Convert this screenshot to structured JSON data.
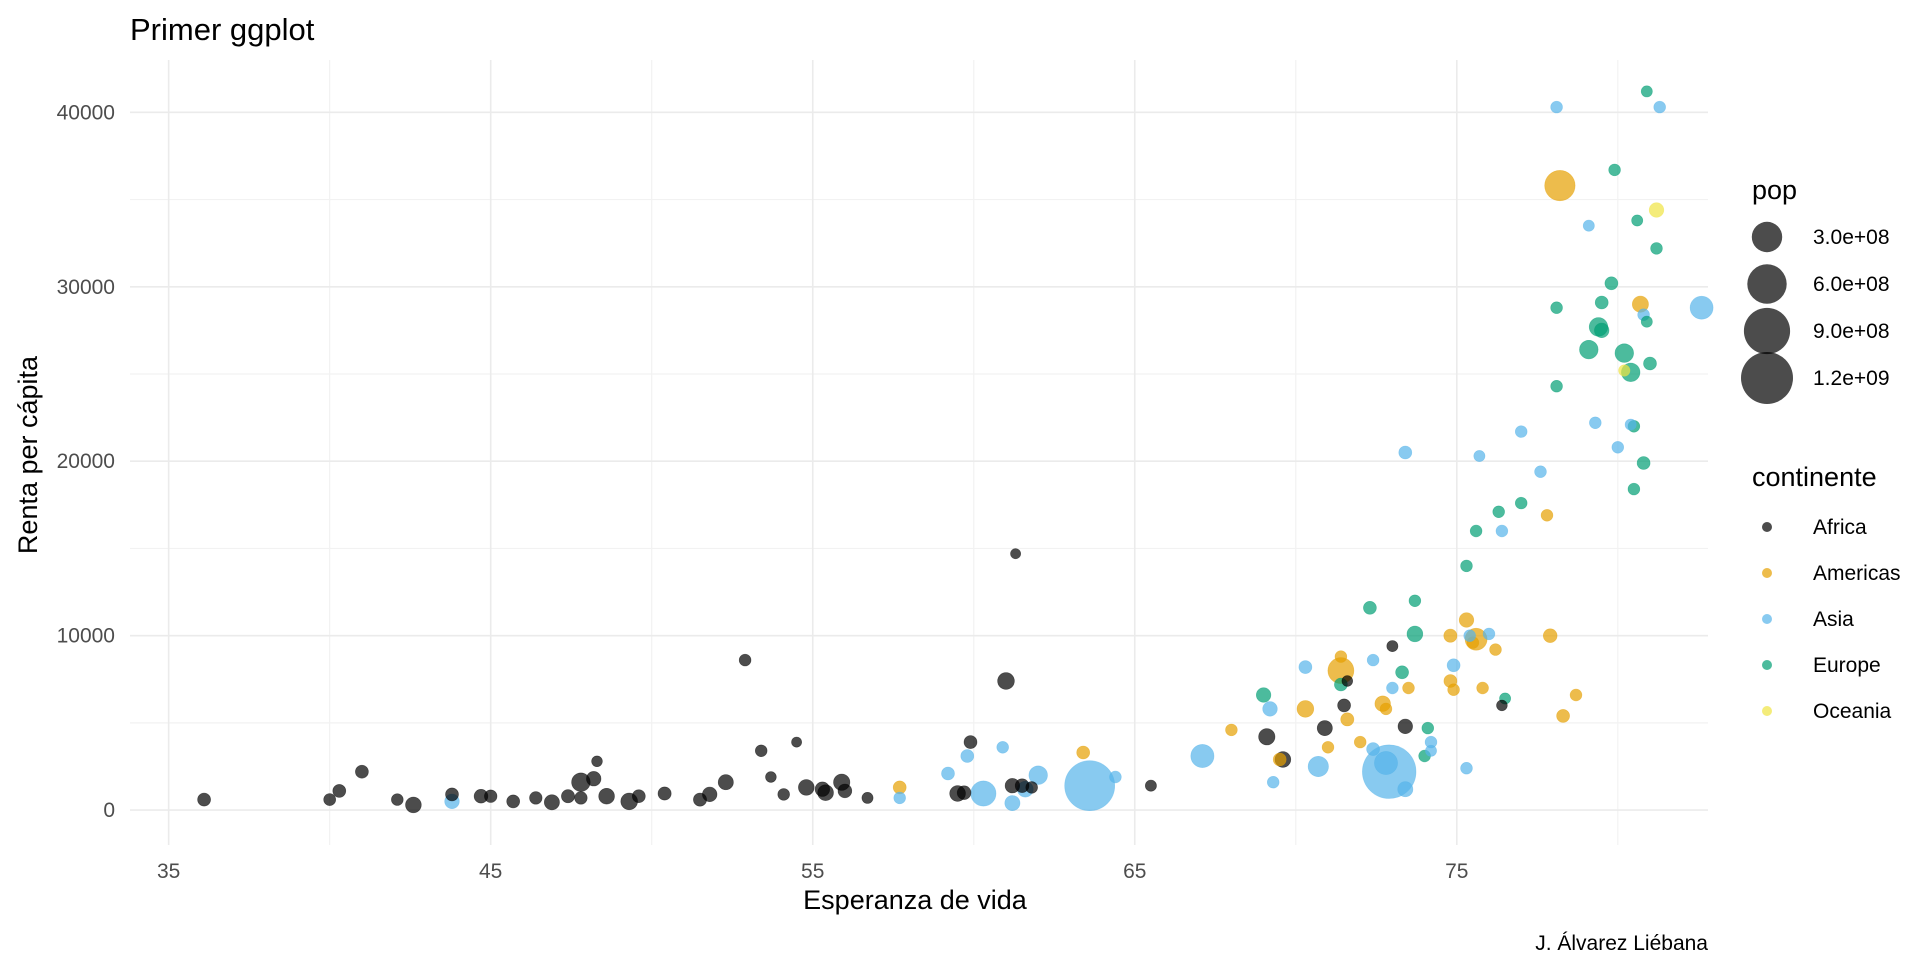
{
  "chart_data": {
    "type": "scatter",
    "title": "Primer ggplot",
    "xlabel": "Esperanza de vida",
    "ylabel": "Renta per cápita",
    "caption": "J. Álvarez Liébana",
    "xlim": [
      33.8,
      82.8
    ],
    "ylim": [
      -2000,
      43000
    ],
    "x_ticks": [
      35,
      45,
      55,
      65,
      75
    ],
    "y_ticks": [
      0,
      10000,
      20000,
      30000,
      40000
    ],
    "grid": true,
    "legend_placement": "right",
    "size_legend": {
      "title": "pop",
      "entries": [
        {
          "label": "3.0e+08",
          "value": 300000000
        },
        {
          "label": "6.0e+08",
          "value": 600000000
        },
        {
          "label": "9.0e+08",
          "value": 900000000
        },
        {
          "label": "1.2e+09",
          "value": 1200000000
        }
      ]
    },
    "color_legend": {
      "title": "continente",
      "entries": [
        {
          "label": "Africa",
          "color": "#000000"
        },
        {
          "label": "Americas",
          "color": "#E69F00"
        },
        {
          "label": "Asia",
          "color": "#56B4E9"
        },
        {
          "label": "Europe",
          "color": "#009E73"
        },
        {
          "label": "Oceania",
          "color": "#F0E442"
        }
      ]
    },
    "series": [
      {
        "name": "Africa",
        "color": "#000000",
        "points": [
          [
            36.1,
            600,
            10000000
          ],
          [
            40.0,
            600,
            6000000
          ],
          [
            40.3,
            1100,
            10000000
          ],
          [
            41.0,
            2200,
            10000000
          ],
          [
            42.1,
            600,
            5000000
          ],
          [
            42.6,
            300,
            30000000
          ],
          [
            43.8,
            900,
            10000000
          ],
          [
            44.7,
            800,
            15000000
          ],
          [
            45.0,
            800,
            8000000
          ],
          [
            45.7,
            500,
            10000000
          ],
          [
            46.4,
            700,
            8000000
          ],
          [
            46.9,
            450,
            25000000
          ],
          [
            47.4,
            800,
            12000000
          ],
          [
            47.8,
            700,
            8000000
          ],
          [
            47.8,
            1600,
            60000000
          ],
          [
            48.2,
            1800,
            20000000
          ],
          [
            48.3,
            2800,
            2000000
          ],
          [
            48.6,
            800,
            30000000
          ],
          [
            49.3,
            500,
            40000000
          ],
          [
            49.6,
            800,
            10000000
          ],
          [
            50.4,
            950,
            12000000
          ],
          [
            51.5,
            600,
            12000000
          ],
          [
            51.8,
            900,
            20000000
          ],
          [
            52.3,
            1600,
            25000000
          ],
          [
            52.9,
            8600,
            5000000
          ],
          [
            53.4,
            3400,
            5000000
          ],
          [
            53.7,
            1900,
            2000000
          ],
          [
            54.1,
            900,
            5000000
          ],
          [
            54.5,
            3900,
            1000000
          ],
          [
            54.8,
            1300,
            30000000
          ],
          [
            55.3,
            1200,
            20000000
          ],
          [
            55.4,
            1000,
            30000000
          ],
          [
            55.9,
            1600,
            35000000
          ],
          [
            56.0,
            1100,
            15000000
          ],
          [
            56.7,
            700,
            3000000
          ],
          [
            59.5,
            950,
            30000000
          ],
          [
            59.7,
            1000,
            15000000
          ],
          [
            59.9,
            3900,
            10000000
          ],
          [
            61.0,
            7400,
            40000000
          ],
          [
            61.2,
            1400,
            20000000
          ],
          [
            61.5,
            1400,
            15000000
          ],
          [
            61.3,
            14700,
            1000000
          ],
          [
            61.8,
            1300,
            5000000
          ],
          [
            65.5,
            1400,
            3000000
          ],
          [
            69.1,
            4200,
            35000000
          ],
          [
            69.6,
            2900,
            30000000
          ],
          [
            70.9,
            4700,
            25000000
          ],
          [
            71.5,
            6000,
            10000000
          ],
          [
            71.6,
            7400,
            2000000
          ],
          [
            73.0,
            9400,
            3000000
          ],
          [
            73.4,
            4800,
            20000000
          ],
          [
            76.4,
            6000,
            2000000
          ]
        ]
      },
      {
        "name": "Americas",
        "color": "#E69F00",
        "points": [
          [
            57.7,
            1300,
            10000000
          ],
          [
            63.4,
            3300,
            10000000
          ],
          [
            68.0,
            4600,
            5000000
          ],
          [
            69.5,
            2900,
            10000000
          ],
          [
            70.3,
            5800,
            40000000
          ],
          [
            71.0,
            3600,
            5000000
          ],
          [
            71.4,
            8800,
            5000000
          ],
          [
            71.4,
            8000,
            190000000
          ],
          [
            71.6,
            5200,
            12000000
          ],
          [
            72.0,
            3900,
            5000000
          ],
          [
            72.7,
            6100,
            28000000
          ],
          [
            72.8,
            5800,
            5000000
          ],
          [
            73.5,
            7000,
            5000000
          ],
          [
            74.8,
            10000,
            12000000
          ],
          [
            74.9,
            6900,
            5000000
          ],
          [
            74.8,
            7400,
            10000000
          ],
          [
            75.3,
            10900,
            20000000
          ],
          [
            75.5,
            9600,
            5000000
          ],
          [
            75.6,
            9800,
            110000000
          ],
          [
            75.8,
            7000,
            5000000
          ],
          [
            76.2,
            9200,
            5000000
          ],
          [
            77.9,
            10000,
            15000000
          ],
          [
            77.8,
            16900,
            5000000
          ],
          [
            78.3,
            5400,
            10000000
          ],
          [
            78.7,
            6600,
            5000000
          ],
          [
            78.2,
            35800,
            300000000
          ],
          [
            80.7,
            29000,
            33000000
          ]
        ]
      },
      {
        "name": "Asia",
        "color": "#56B4E9",
        "points": [
          [
            43.8,
            500,
            20000000
          ],
          [
            57.7,
            700,
            5000000
          ],
          [
            59.2,
            2100,
            10000000
          ],
          [
            59.8,
            3100,
            10000000
          ],
          [
            60.3,
            950,
            170000000
          ],
          [
            60.9,
            3600,
            5000000
          ],
          [
            61.2,
            400,
            25000000
          ],
          [
            61.6,
            1200,
            30000000
          ],
          [
            62.0,
            2000,
            60000000
          ],
          [
            63.6,
            1400,
            1100000000
          ],
          [
            64.4,
            1900,
            5000000
          ],
          [
            67.1,
            3100,
            130000000
          ],
          [
            69.2,
            5800,
            20000000
          ],
          [
            69.3,
            1600,
            5000000
          ],
          [
            70.3,
            8200,
            10000000
          ],
          [
            70.7,
            2500,
            85000000
          ],
          [
            72.4,
            3500,
            10000000
          ],
          [
            72.4,
            8600,
            5000000
          ],
          [
            72.8,
            2700,
            130000000
          ],
          [
            72.9,
            2200,
            1300000000
          ],
          [
            73.0,
            7000,
            5000000
          ],
          [
            73.4,
            1200,
            25000000
          ],
          [
            73.4,
            20500,
            10000000
          ],
          [
            74.2,
            3400,
            3000000
          ],
          [
            74.2,
            3900,
            5000000
          ],
          [
            74.9,
            8300,
            10000000
          ],
          [
            75.4,
            10000,
            5000000
          ],
          [
            75.3,
            2400,
            5000000
          ],
          [
            75.7,
            20300,
            3000000
          ],
          [
            77.6,
            19400,
            5000000
          ],
          [
            76.0,
            10100,
            5000000
          ],
          [
            76.4,
            16000,
            5000000
          ],
          [
            77.0,
            21700,
            5000000
          ],
          [
            78.1,
            40300,
            5000000
          ],
          [
            79.1,
            33500,
            3000000
          ],
          [
            79.3,
            22200,
            5000000
          ],
          [
            80.0,
            20800,
            5000000
          ],
          [
            80.4,
            22100,
            3000000
          ],
          [
            80.8,
            28400,
            5000000
          ],
          [
            82.6,
            28800,
            127000000
          ],
          [
            81.3,
            40300,
            5000000
          ]
        ]
      },
      {
        "name": "Europe",
        "color": "#009E73",
        "points": [
          [
            69.0,
            6600,
            20000000
          ],
          [
            71.4,
            7200,
            10000000
          ],
          [
            72.3,
            11600,
            10000000
          ],
          [
            73.3,
            7900,
            10000000
          ],
          [
            73.7,
            10100,
            30000000
          ],
          [
            73.7,
            12000,
            5000000
          ],
          [
            74.0,
            3100,
            5000000
          ],
          [
            74.1,
            4700,
            5000000
          ],
          [
            75.3,
            14000,
            5000000
          ],
          [
            75.6,
            16000,
            5000000
          ],
          [
            76.3,
            17100,
            5000000
          ],
          [
            76.5,
            6400,
            3000000
          ],
          [
            77.0,
            17600,
            5000000
          ],
          [
            78.1,
            28800,
            5000000
          ],
          [
            78.1,
            24300,
            5000000
          ],
          [
            79.1,
            26400,
            60000000
          ],
          [
            79.4,
            27700,
            60000000
          ],
          [
            79.5,
            29100,
            10000000
          ],
          [
            79.5,
            27500,
            20000000
          ],
          [
            79.8,
            30200,
            10000000
          ],
          [
            79.9,
            36700,
            5000000
          ],
          [
            80.2,
            26200,
            60000000
          ],
          [
            80.4,
            25100,
            60000000
          ],
          [
            80.5,
            22000,
            5000000
          ],
          [
            80.5,
            18400,
            5000000
          ],
          [
            80.8,
            19900,
            10000000
          ],
          [
            80.9,
            28000,
            3000000
          ],
          [
            81.0,
            25600,
            10000000
          ],
          [
            81.2,
            32200,
            5000000
          ],
          [
            80.6,
            33800,
            3000000
          ],
          [
            80.9,
            41200,
            3000000
          ]
        ]
      },
      {
        "name": "Oceania",
        "color": "#F0E442",
        "points": [
          [
            80.2,
            25200,
            4000000
          ],
          [
            81.2,
            34400,
            20000000
          ]
        ]
      }
    ]
  }
}
